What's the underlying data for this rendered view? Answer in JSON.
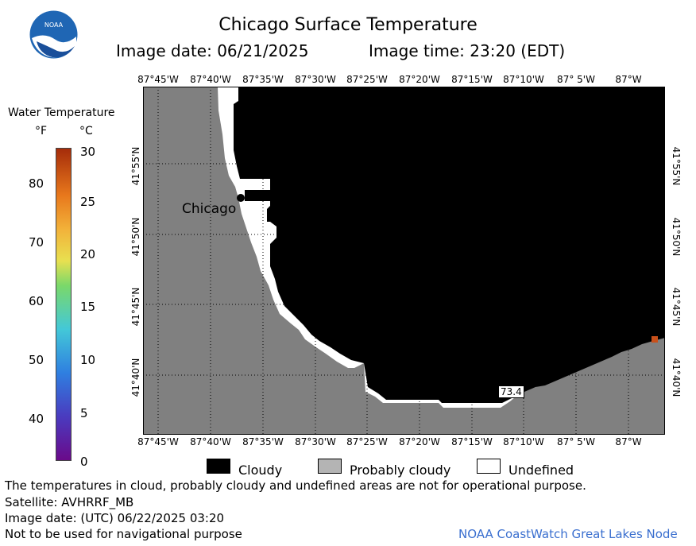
{
  "header": {
    "title": "Chicago Surface Temperature",
    "image_date": "Image date: 06/21/2025",
    "image_time": "Image time: 23:20 (EDT)"
  },
  "logo": {
    "text": "NOAA"
  },
  "map": {
    "lon_labels": [
      "87°45'W",
      "87°40'W",
      "87°35'W",
      "87°30'W",
      "87°25'W",
      "87°20'W",
      "87°15'W",
      "87°10'W",
      "87° 5'W",
      "87°W"
    ],
    "lat_labels": [
      "41°55'N",
      "41°50'N",
      "41°45'N",
      "41°40'N"
    ],
    "city_label": "Chicago",
    "temp_marker": "73.4",
    "colors": {
      "land": "#808080",
      "water_cloudy": "#000000",
      "undefined": "#ffffff",
      "warm_pixel": "#c8501a"
    }
  },
  "colorbar": {
    "title": "Water Temperature",
    "unit_f": "°F",
    "unit_c": "°C",
    "f_ticks": [
      "80",
      "70",
      "60",
      "50",
      "40"
    ],
    "c_ticks": [
      "30",
      "25",
      "20",
      "15",
      "10",
      "5",
      "0"
    ],
    "range_c": [
      0,
      30
    ]
  },
  "legend": {
    "cloudy": "Cloudy",
    "probably_cloudy": "Probably cloudy",
    "undefined": "Undefined"
  },
  "footer": {
    "disclaimer": "The temperatures in cloud, probably cloudy and undefined areas are not for operational purpose.",
    "satellite": "Satellite: AVHRRF_MB",
    "utc_date": "Image date: (UTC) 06/22/2025  03:20",
    "nav_warning": "Not to be used for navigational purpose",
    "credit": "NOAA CoastWatch Great Lakes Node"
  }
}
